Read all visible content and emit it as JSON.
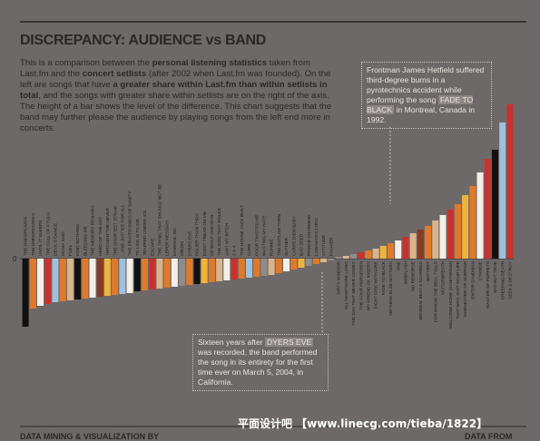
{
  "header": {
    "title": "DISCREPANCY: AUDIENCE vs BAND",
    "intro": [
      "This is a comparison between the ",
      "personal listening statistics",
      " taken from Last.fm and the ",
      "concert setlists",
      " (after 2002 when Last.fm was founded). On the left are songs that have ",
      "a greater share within Last.fm than within setlists in total",
      ", and the songs with greater share within setlists are on the right of the axis. The height of a bar shows the level of the difference. This chart suggests that the band may further please the audience by playing songs from the left end more in concerts."
    ]
  },
  "annotations": [
    {
      "parts": [
        "Frontman James Hetfield suffered third-degree burns in a pyrotechnics accident while performing the song ",
        "FADE TO BLACK",
        " in Montreal, Canada in 1992."
      ]
    },
    {
      "parts": [
        "Sixteen years after ",
        "DYERS EVE",
        " was recorded, the band performed the song in its entirety for the first time ever on March 5, 2004, in California."
      ]
    }
  ],
  "footer": {
    "left": "DATA MINING & VISUALIZATION BY",
    "right": "DATA FROM"
  },
  "watermark": "平面设计吧 【www.linecg.com/tieba/1822】",
  "chart_data": {
    "type": "bar",
    "categories": [
      "THE UNFORGIVEN",
      "THE UNFORGIVEN II",
      "UNTIL IT SLEEPS",
      "THE CALL OF KTULU",
      "DEVIL'S DANCE",
      "MAMA SAID",
      "FUEL",
      "KING NOTHING",
      "BLEEDING ME",
      "THE MEMORY REMAINS",
      "HERO OF THE DAY",
      "THROUGH THE NEVER",
      "THE SHORTEST STRAW",
      "...AND JUSTICE FOR ALL",
      "THE FRAYED ENDS OF SANITY",
      "TO LIVE IS TO DIE",
      "TRAPPED UNDER ICE",
      "ESCAPE",
      "THE THING THAT SHOULD NOT BE",
      "LEPER MESSIAH",
      "DAMAGE, INC.",
      "ORION",
      "DYERS EVE",
      "HOLIER THAN THOU",
      "DON'T TREAD ON ME",
      "OF WOLF AND MAN",
      "THE GOD THAT FAILED",
      "AIN'T MY BITCH",
      "2 X 4",
      "THE HOUSE JACK BUILT",
      "CURE",
      "POOR TWISTED ME",
      "WASTING MY HATE",
      "RONNIE",
      "THE OUTLAW TORN",
      "SLITHER",
      "CARPE DIEM BABY",
      "BAD SEED",
      "PRINCE CHARMING",
      "LOW MAN'S LYRIC",
      "ATTITUDE",
      "FIXXXER",
      "DIRTY WINDOW",
      "ALL NIGHTMARE LONG",
      "THE DAY THAT NEVER COMES",
      "THE FOUR HORSEMEN",
      "MY FRIEND OF MISERY",
      "FIGHT FIRE WITH FIRE",
      "FADE TO BLACK",
      "NOTHING ELSE MATTERS",
      "ONE",
      "WHIPLASH",
      "NO REMORSE",
      "BROKEN, BEAT & SCARRED",
      "BATTERY",
      "FOR WHOM THE BELL TOLLS",
      "MOTORBREATH",
      "WELCOME HOME (SANITARIUM)",
      "THAT WAS JUST YOUR LIFE",
      "HARVESTER OF SORROW",
      "ENTER SANDMAN",
      "CYANIDE",
      "MASTER OF PUPPETS",
      "SAD BUT TRUE",
      "CREEPING DEATH",
      "SEEK & DESTROY"
    ],
    "values": [
      -75,
      -55,
      -52,
      -50,
      -48,
      -47,
      -46,
      -45,
      -44,
      -43,
      -42,
      -41,
      -40,
      -39,
      -38,
      -36,
      -35,
      -34,
      -33,
      -32,
      -31,
      -30,
      -29,
      -28,
      -27,
      -26,
      -25,
      -24,
      -23,
      -22,
      -21,
      -20,
      -19,
      -18,
      -16,
      -14,
      -12,
      -10,
      -8,
      -6,
      -4,
      -2,
      2,
      3,
      5,
      7,
      9,
      11,
      14,
      17,
      20,
      24,
      28,
      32,
      36,
      42,
      48,
      54,
      60,
      70,
      80,
      95,
      110,
      120,
      150,
      170
    ],
    "colors": [
      "#111111",
      "#e07a2a",
      "#f2efe9",
      "#c8322e",
      "#9fc0dc",
      "#e07a2a",
      "#d9b48a",
      "#111111",
      "#e07a2a",
      "#f2efe9",
      "#8a3a22",
      "#f0b33a",
      "#e07a2a",
      "#9fc0dc",
      "#f2efe9",
      "#111111",
      "#e07a2a",
      "#c8322e",
      "#d9b48a",
      "#e07a2a",
      "#f2efe9",
      "#8f8b89",
      "#e07a2a",
      "#111111",
      "#f0b33a",
      "#e07a2a",
      "#d9b48a",
      "#f2efe9",
      "#c8322e",
      "#e07a2a",
      "#9fc0dc",
      "#e07a2a",
      "#8f8b89",
      "#d9b48a",
      "#e07a2a",
      "#f2efe9",
      "#e07a2a",
      "#f0b33a",
      "#8f8b89",
      "#e07a2a",
      "#d9b48a",
      "#8f8b89",
      "#8f8b89",
      "#d9b48a",
      "#8f8b89",
      "#c8322e",
      "#e07a2a",
      "#d9b48a",
      "#f0b33a",
      "#e07a2a",
      "#f2efe9",
      "#c8322e",
      "#d9b48a",
      "#8a3a22",
      "#e07a2a",
      "#d9b48a",
      "#f2efe9",
      "#c8322e",
      "#e07a2a",
      "#f0b33a",
      "#e07a2a",
      "#f2efe9",
      "#c8322e",
      "#111111",
      "#9fc0dc",
      "#c8322e"
    ],
    "yticks": [
      0
    ]
  }
}
